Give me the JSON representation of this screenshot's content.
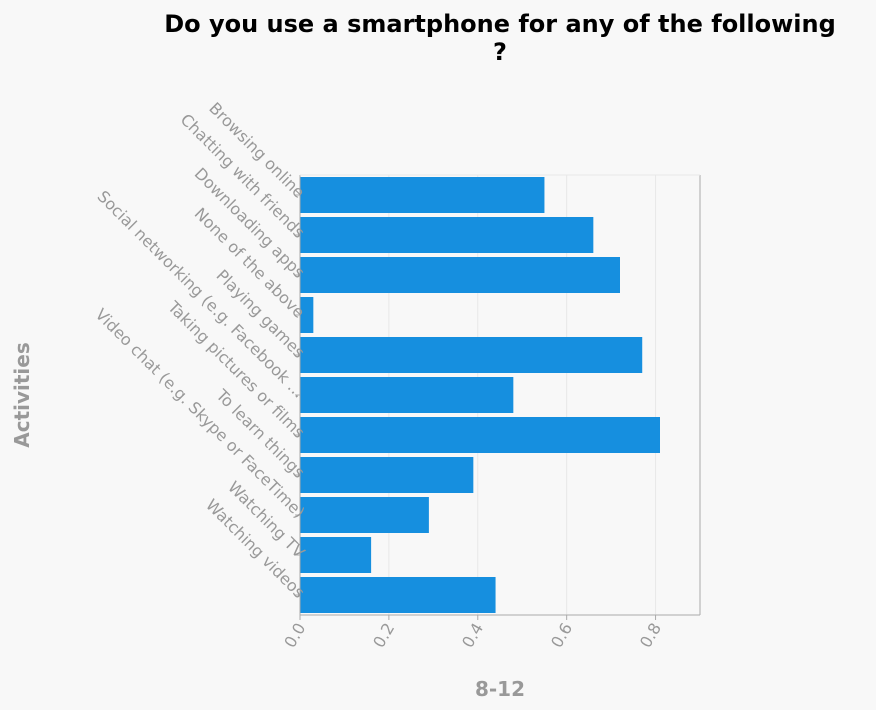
{
  "colors": {
    "bar": "#168fdf",
    "plot_bg": "#f8f8f8",
    "grid": "#e8e8e8",
    "axis": "#aaaaaa",
    "text": "#999999",
    "title": "#000000"
  },
  "chart_data": {
    "type": "bar",
    "orientation": "horizontal",
    "title_line1": "Do you use a smartphone for any of the following",
    "title_line2": "?",
    "xlabel": "8-12",
    "ylabel": "Activities",
    "xlim": [
      0,
      0.9
    ],
    "xticks": [
      "0.0",
      "0.2",
      "0.4",
      "0.6",
      "0.8"
    ],
    "grid": "vertical",
    "categories": [
      "Browsing online",
      "Chatting with friends",
      "Downloading apps",
      "None of the above",
      "Playing games",
      "Social networking (e.g. Facebook …",
      "Taking pictures or films",
      "To learn things",
      "Video chat (e.g. Skype or FaceTime)",
      "Watching TV",
      "Watching videos"
    ],
    "values": [
      0.55,
      0.66,
      0.72,
      0.03,
      0.77,
      0.48,
      0.81,
      0.39,
      0.29,
      0.16,
      0.44
    ]
  }
}
